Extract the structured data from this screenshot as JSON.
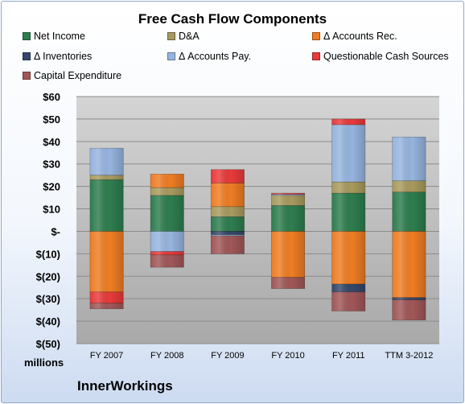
{
  "chart_data": {
    "type": "bar",
    "stacked": true,
    "title": "Free Cash Flow Components",
    "units_label": "millions",
    "company": "InnerWorkings",
    "categories": [
      "FY 2007",
      "FY 2008",
      "FY 2009",
      "FY 2010",
      "FY 2011",
      "TTM 3-2012"
    ],
    "y_tick_labels": [
      "$60",
      "$50",
      "$40",
      "$30",
      "$20",
      "$10",
      "$-",
      "$(10)",
      "$(20)",
      "$(30)",
      "$(40)",
      "$(50)"
    ],
    "ylim": [
      -50,
      60
    ],
    "grid": true,
    "legend_position": "top",
    "series": [
      {
        "name": "Net Income",
        "color": "#2e7d4f",
        "values": [
          23.0,
          16.0,
          6.5,
          11.5,
          17.0,
          17.5
        ]
      },
      {
        "name": "D&A",
        "color": "#a89a5e",
        "values": [
          2.0,
          3.5,
          4.5,
          4.5,
          5.0,
          5.0
        ]
      },
      {
        "name": "Δ Accounts Rec.",
        "color": "#ee7d24",
        "values": [
          -27.0,
          6.0,
          10.5,
          -20.5,
          -23.5,
          -29.5
        ]
      },
      {
        "name": "Δ Inventories",
        "color": "#35486a",
        "values": [
          0.0,
          0.0,
          -1.5,
          0.0,
          -3.5,
          -1.0
        ]
      },
      {
        "name": "Δ Accounts Pay.",
        "color": "#96b4de",
        "values": [
          12.0,
          -9.0,
          -0.5,
          0.5,
          25.5,
          19.5
        ]
      },
      {
        "name": "Questionable Cash Sources",
        "color": "#e83a3a",
        "values": [
          -5.0,
          -1.5,
          6.0,
          0.5,
          2.5,
          0.0
        ]
      },
      {
        "name": "Capital Expenditure",
        "color": "#a05758",
        "values": [
          -2.5,
          -5.5,
          -8.0,
          -5.0,
          -8.5,
          -9.0
        ]
      }
    ]
  }
}
